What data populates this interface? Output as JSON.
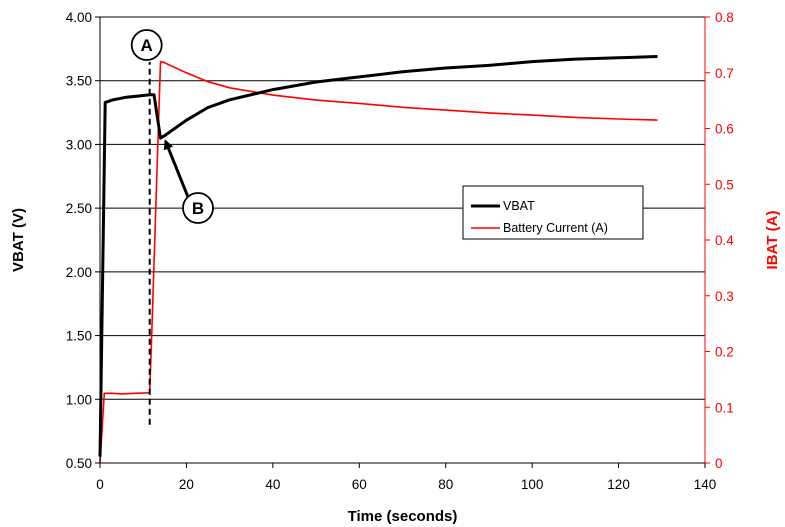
{
  "chart_data": {
    "type": "line",
    "xlabel": "Time (seconds)",
    "ylabel": "VBAT (V)",
    "y2label": "IBAT (A)",
    "xlim": [
      0,
      140
    ],
    "ylim": [
      0.5,
      4.0
    ],
    "y2lim": [
      0,
      0.8
    ],
    "x_ticks": [
      "0",
      "20",
      "40",
      "60",
      "80",
      "100",
      "120",
      "140"
    ],
    "y_ticks": [
      "0.50",
      "1.00",
      "1.50",
      "2.00",
      "2.50",
      "3.00",
      "3.50",
      "4.00"
    ],
    "y2_ticks": [
      "0",
      "0.1",
      "0.2",
      "0.3",
      "0.4",
      "0.5",
      "0.6",
      "0.7",
      "0.8"
    ],
    "grid": "horizontal",
    "legend_position": "middle-right",
    "colors": {
      "vbat": "#000000",
      "current": "#ff0000",
      "right_axis": "#ff0000",
      "grid": "#000000"
    },
    "series": [
      {
        "name": "VBAT",
        "axis": "left",
        "x": [
          0,
          1.2,
          3,
          6,
          9,
          11.5,
          12.5,
          14,
          15,
          20,
          25,
          30,
          40,
          50,
          60,
          70,
          80,
          90,
          100,
          110,
          120,
          129
        ],
        "y": [
          0.55,
          3.33,
          3.35,
          3.37,
          3.38,
          3.39,
          3.39,
          3.05,
          3.07,
          3.19,
          3.29,
          3.35,
          3.43,
          3.49,
          3.53,
          3.57,
          3.6,
          3.62,
          3.65,
          3.67,
          3.68,
          3.69
        ]
      },
      {
        "name": "Battery Current (A)",
        "axis": "right",
        "x": [
          0,
          1,
          3,
          5,
          8,
          11.5,
          12,
          13,
          14,
          15,
          16,
          20,
          25,
          30,
          40,
          50,
          60,
          70,
          80,
          90,
          100,
          110,
          120,
          129
        ],
        "y": [
          0,
          0.125,
          0.125,
          0.124,
          0.125,
          0.126,
          0.24,
          0.48,
          0.72,
          0.718,
          0.714,
          0.7,
          0.684,
          0.673,
          0.66,
          0.651,
          0.645,
          0.638,
          0.633,
          0.628,
          0.624,
          0.62,
          0.617,
          0.615
        ]
      }
    ],
    "annotations": [
      {
        "label": "A",
        "x": 11.5,
        "y_left": 3.39,
        "style": "dashed vertical marker"
      },
      {
        "label": "B",
        "x": 14,
        "y_left": 3.05,
        "style": "arrow callout"
      }
    ]
  }
}
